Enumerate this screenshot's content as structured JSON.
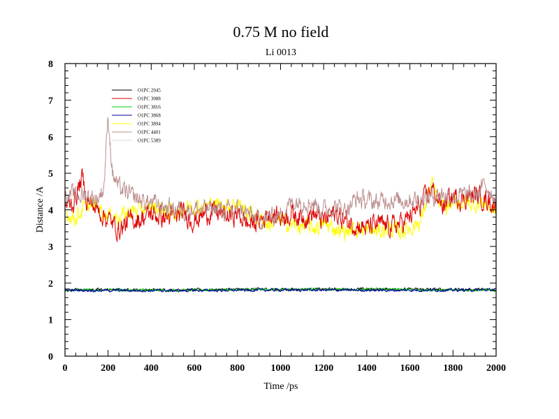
{
  "chart_data": {
    "type": "line",
    "title": "0.75 M no field",
    "subtitle": "Li 0013",
    "xlabel": "Time /ps",
    "ylabel": "Distance /A",
    "xlim": [
      0,
      2000
    ],
    "ylim": [
      0,
      8
    ],
    "xticks": [
      "0",
      "200",
      "400",
      "600",
      "800",
      "1000",
      "1200",
      "1400",
      "1600",
      "1800",
      "2000"
    ],
    "yticks": [
      "0",
      "1",
      "2",
      "3",
      "4",
      "5",
      "6",
      "7",
      "8"
    ],
    "grid": false,
    "legend_position": "top-left",
    "series": [
      {
        "name": "O1PC 2945",
        "color": "#000000",
        "base": [
          [
            0,
            1.82
          ],
          [
            500,
            1.81
          ],
          [
            1000,
            1.83
          ],
          [
            1500,
            1.83
          ],
          [
            2000,
            1.82
          ]
        ],
        "noise": 0.03
      },
      {
        "name": "O1PC 3088",
        "color": "#dd0000",
        "base": [
          [
            0,
            4.1
          ],
          [
            40,
            4.2
          ],
          [
            80,
            4.9
          ],
          [
            100,
            4.3
          ],
          [
            150,
            4.0
          ],
          [
            200,
            3.75
          ],
          [
            250,
            3.45
          ],
          [
            300,
            3.7
          ],
          [
            350,
            3.75
          ],
          [
            400,
            3.9
          ],
          [
            450,
            3.8
          ],
          [
            500,
            3.8
          ],
          [
            550,
            3.9
          ],
          [
            600,
            3.7
          ],
          [
            650,
            3.9
          ],
          [
            700,
            3.95
          ],
          [
            750,
            3.8
          ],
          [
            800,
            3.9
          ],
          [
            850,
            3.6
          ],
          [
            900,
            3.7
          ],
          [
            950,
            3.9
          ],
          [
            1000,
            3.8
          ],
          [
            1050,
            3.9
          ],
          [
            1100,
            3.8
          ],
          [
            1150,
            3.9
          ],
          [
            1200,
            3.7
          ],
          [
            1250,
            3.9
          ],
          [
            1300,
            3.7
          ],
          [
            1350,
            3.6
          ],
          [
            1400,
            3.5
          ],
          [
            1450,
            3.6
          ],
          [
            1500,
            3.55
          ],
          [
            1550,
            3.6
          ],
          [
            1600,
            3.8
          ],
          [
            1650,
            4.1
          ],
          [
            1700,
            4.6
          ],
          [
            1750,
            4.1
          ],
          [
            1800,
            4.35
          ],
          [
            1850,
            4.3
          ],
          [
            1900,
            4.4
          ],
          [
            1950,
            4.3
          ],
          [
            2000,
            4.1
          ]
        ],
        "noise": 0.22
      },
      {
        "name": "O1PC 3816",
        "color": "#00cc00",
        "base": [
          [
            0,
            1.81
          ],
          [
            500,
            1.8
          ],
          [
            1000,
            1.82
          ],
          [
            1500,
            1.82
          ],
          [
            2000,
            1.8
          ]
        ],
        "noise": 0.03
      },
      {
        "name": "O1PC 3868",
        "color": "#0000aa",
        "base": [
          [
            0,
            1.8
          ],
          [
            500,
            1.79
          ],
          [
            1000,
            1.81
          ],
          [
            1500,
            1.8
          ],
          [
            2000,
            1.81
          ]
        ],
        "noise": 0.03
      },
      {
        "name": "O1PC 3894",
        "color": "#ffff00",
        "base": [
          [
            0,
            3.9
          ],
          [
            50,
            3.8
          ],
          [
            100,
            4.1
          ],
          [
            150,
            4.1
          ],
          [
            200,
            3.85
          ],
          [
            250,
            3.8
          ],
          [
            300,
            3.95
          ],
          [
            350,
            4.0
          ],
          [
            400,
            4.1
          ],
          [
            450,
            4.0
          ],
          [
            500,
            3.9
          ],
          [
            550,
            4.05
          ],
          [
            600,
            4.1
          ],
          [
            650,
            4.1
          ],
          [
            700,
            4.15
          ],
          [
            750,
            4.1
          ],
          [
            800,
            4.2
          ],
          [
            850,
            3.9
          ],
          [
            900,
            3.75
          ],
          [
            950,
            3.6
          ],
          [
            1000,
            3.7
          ],
          [
            1050,
            3.6
          ],
          [
            1100,
            3.55
          ],
          [
            1150,
            3.5
          ],
          [
            1200,
            3.6
          ],
          [
            1250,
            3.5
          ],
          [
            1300,
            3.4
          ],
          [
            1350,
            3.5
          ],
          [
            1400,
            3.45
          ],
          [
            1450,
            3.4
          ],
          [
            1500,
            3.5
          ],
          [
            1550,
            3.4
          ],
          [
            1600,
            3.5
          ],
          [
            1650,
            3.7
          ],
          [
            1700,
            4.7
          ],
          [
            1750,
            4.0
          ],
          [
            1800,
            4.2
          ],
          [
            1850,
            4.2
          ],
          [
            1900,
            4.15
          ],
          [
            1950,
            4.2
          ],
          [
            2000,
            3.9
          ]
        ],
        "noise": 0.18
      },
      {
        "name": "O1PC 4401",
        "color": "#bc8f8f",
        "base": [
          [
            0,
            4.4
          ],
          [
            50,
            4.4
          ],
          [
            100,
            4.4
          ],
          [
            150,
            4.3
          ],
          [
            180,
            4.6
          ],
          [
            200,
            6.6
          ],
          [
            220,
            5.0
          ],
          [
            250,
            4.6
          ],
          [
            300,
            4.4
          ],
          [
            350,
            4.25
          ],
          [
            400,
            4.2
          ],
          [
            450,
            4.1
          ],
          [
            500,
            4.05
          ],
          [
            550,
            4.0
          ],
          [
            600,
            4.05
          ],
          [
            650,
            4.0
          ],
          [
            700,
            4.05
          ],
          [
            750,
            3.95
          ],
          [
            800,
            4.0
          ],
          [
            850,
            3.9
          ],
          [
            900,
            3.7
          ],
          [
            950,
            3.8
          ],
          [
            1000,
            3.85
          ],
          [
            1050,
            4.2
          ],
          [
            1100,
            4.25
          ],
          [
            1150,
            4.2
          ],
          [
            1200,
            4.0
          ],
          [
            1250,
            4.1
          ],
          [
            1300,
            4.0
          ],
          [
            1350,
            4.3
          ],
          [
            1400,
            4.25
          ],
          [
            1450,
            4.2
          ],
          [
            1500,
            4.3
          ],
          [
            1550,
            4.25
          ],
          [
            1600,
            4.3
          ],
          [
            1650,
            4.3
          ],
          [
            1700,
            4.35
          ],
          [
            1750,
            4.45
          ],
          [
            1800,
            4.35
          ],
          [
            1850,
            4.4
          ],
          [
            1900,
            4.35
          ],
          [
            1950,
            4.7
          ],
          [
            2000,
            4.3
          ]
        ],
        "noise": 0.2
      },
      {
        "name": "O1PC 5389",
        "color": "#dcdcdc",
        "base": [
          [
            0,
            1.79
          ],
          [
            1000,
            1.8
          ],
          [
            2000,
            1.79
          ]
        ],
        "noise": 0.01
      }
    ]
  }
}
